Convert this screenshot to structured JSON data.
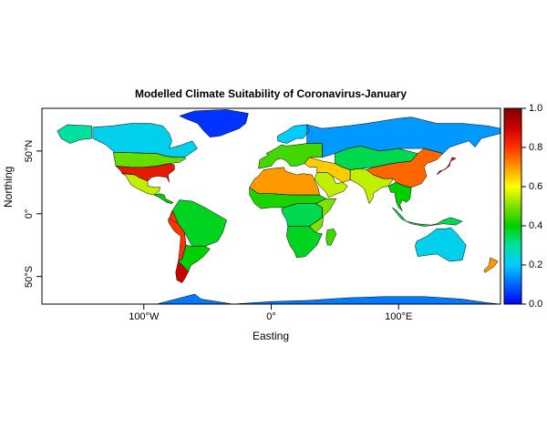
{
  "map": {
    "title": "Modelled Climate Suitability of Coronavirus-January",
    "xlabel": "Easting",
    "ylabel": "Northing",
    "x_ticks": [
      {
        "value": -100,
        "label": "100°W"
      },
      {
        "value": 0,
        "label": "0°"
      },
      {
        "value": 100,
        "label": "100°E"
      }
    ],
    "y_ticks": [
      {
        "value": 50,
        "label": "50°N"
      },
      {
        "value": 0,
        "label": "0°"
      },
      {
        "value": -50,
        "label": "50°S"
      }
    ],
    "extent": {
      "lon": [
        -180,
        180
      ],
      "lat": [
        -72,
        84
      ]
    },
    "projection": "longitude-latitude",
    "background": "#ffffff"
  },
  "colorbar": {
    "range": [
      0,
      1
    ],
    "ticks": [
      {
        "value": 0.0,
        "label": "0.0"
      },
      {
        "value": 0.2,
        "label": "0.2"
      },
      {
        "value": 0.4,
        "label": "0.4"
      },
      {
        "value": 0.6,
        "label": "0.6"
      },
      {
        "value": 0.8,
        "label": "0.8"
      },
      {
        "value": 1.0,
        "label": "1.0"
      }
    ],
    "colors": [
      "#0000ff",
      "#0066ff",
      "#00ccff",
      "#00e0a0",
      "#00d000",
      "#80e000",
      "#ffff00",
      "#ff9900",
      "#ff3300",
      "#cc0000",
      "#800000"
    ]
  },
  "regions": [
    {
      "name": "Greenland",
      "value": 0.05
    },
    {
      "name": "Canada",
      "value": 0.22
    },
    {
      "name": "Alaska",
      "value": 0.3
    },
    {
      "name": "Northern USA",
      "value": 0.48
    },
    {
      "name": "Southeastern USA",
      "value": 0.85
    },
    {
      "name": "Mexico",
      "value": 0.55
    },
    {
      "name": "Central America",
      "value": 0.4
    },
    {
      "name": "Amazon Basin",
      "value": 0.38
    },
    {
      "name": "Andes",
      "value": 0.8
    },
    {
      "name": "Southern South America",
      "value": 0.4
    },
    {
      "name": "Patagonia",
      "value": 0.9
    },
    {
      "name": "Europe",
      "value": 0.45
    },
    {
      "name": "Scandinavia",
      "value": 0.2
    },
    {
      "name": "North Africa",
      "value": 0.7
    },
    {
      "name": "Sahel",
      "value": 0.42
    },
    {
      "name": "Central Africa",
      "value": 0.35
    },
    {
      "name": "East Africa",
      "value": 0.5
    },
    {
      "name": "Southern Africa",
      "value": 0.38
    },
    {
      "name": "Madagascar",
      "value": 0.45
    },
    {
      "name": "Middle East",
      "value": 0.65
    },
    {
      "name": "Arabia",
      "value": 0.55
    },
    {
      "name": "Russia",
      "value": 0.15
    },
    {
      "name": "Central Asia",
      "value": 0.35
    },
    {
      "name": "India",
      "value": 0.55
    },
    {
      "name": "China",
      "value": 0.75
    },
    {
      "name": "Japan",
      "value": 0.85
    },
    {
      "name": "Southeast Asia",
      "value": 0.4
    },
    {
      "name": "Indonesia",
      "value": 0.35
    },
    {
      "name": "Australia",
      "value": 0.22
    },
    {
      "name": "New Zealand",
      "value": 0.7
    },
    {
      "name": "Antarctica",
      "value": 0.12
    }
  ]
}
